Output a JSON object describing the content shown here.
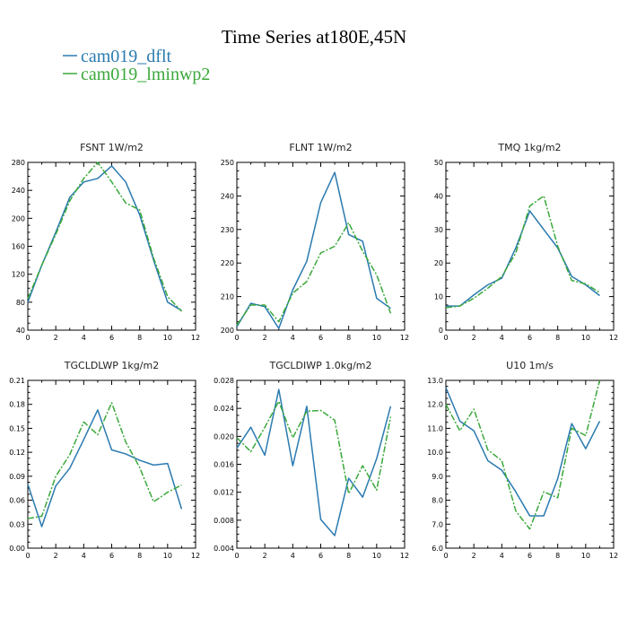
{
  "title": "Time Series at180E,45N",
  "legend": [
    {
      "label": "cam019_dflt",
      "color": "#2a7ab0",
      "dash": "solid"
    },
    {
      "label": "cam019_lminwp2",
      "color": "#3aa83a",
      "dash": "dashed"
    }
  ],
  "colors": {
    "dflt": "#2a7ab0",
    "lminwp2": "#3aa83a"
  },
  "chart_data": [
    {
      "type": "line",
      "title": "FSNT   1W/m2",
      "x": [
        0,
        1,
        2,
        3,
        4,
        5,
        6,
        7,
        8,
        9,
        10,
        11
      ],
      "xlim": [
        0,
        12
      ],
      "xticks": [
        0,
        2,
        4,
        6,
        8,
        10,
        12
      ],
      "ylim": [
        40,
        280
      ],
      "yticks": [
        "40",
        "80",
        "120",
        "160",
        "200",
        "240",
        "280"
      ],
      "series": [
        {
          "name": "cam019_dflt",
          "values": [
            80,
            133,
            180,
            230,
            252,
            257,
            275,
            252,
            205,
            140,
            80,
            68
          ]
        },
        {
          "name": "cam019_lminwp2",
          "values": [
            85,
            133,
            177,
            225,
            257,
            280,
            252,
            222,
            212,
            143,
            88,
            67
          ]
        }
      ]
    },
    {
      "type": "line",
      "title": "FLNT   1W/m2",
      "x": [
        0,
        1,
        2,
        3,
        4,
        5,
        6,
        7,
        8,
        9,
        10,
        11
      ],
      "xlim": [
        0,
        12
      ],
      "xticks": [
        0,
        2,
        4,
        6,
        8,
        10,
        12
      ],
      "ylim": [
        200,
        250
      ],
      "yticks": [
        "200",
        "210",
        "220",
        "230",
        "240",
        "250"
      ],
      "series": [
        {
          "name": "cam019_dflt",
          "values": [
            201,
            208,
            207,
            200.5,
            212,
            220.5,
            238,
            247,
            228.5,
            226.5,
            209.5,
            206.5
          ]
        },
        {
          "name": "cam019_lminwp2",
          "values": [
            201.5,
            207.5,
            207.5,
            202.5,
            211,
            214.5,
            223,
            225,
            232,
            223.5,
            216.5,
            205
          ]
        }
      ]
    },
    {
      "type": "line",
      "title": "TMQ   1kg/m2",
      "x": [
        0,
        1,
        2,
        3,
        4,
        5,
        6,
        7,
        8,
        9,
        10,
        11
      ],
      "xlim": [
        0,
        12
      ],
      "xticks": [
        0,
        2,
        4,
        6,
        8,
        10,
        12
      ],
      "ylim": [
        0,
        50
      ],
      "yticks": [
        "0",
        "10",
        "20",
        "30",
        "40",
        "50"
      ],
      "series": [
        {
          "name": "cam019_dflt",
          "values": [
            7.2,
            7.2,
            10.5,
            13.5,
            15.5,
            24.5,
            35.5,
            30,
            24.5,
            16,
            13.5,
            10.3
          ]
        },
        {
          "name": "cam019_lminwp2",
          "values": [
            6.7,
            7.2,
            9.5,
            12.5,
            16,
            23,
            37,
            40,
            25,
            14.8,
            13.8,
            11.2
          ]
        }
      ]
    },
    {
      "type": "line",
      "title": "TGCLDLWP   1kg/m2",
      "x": [
        0,
        1,
        2,
        3,
        4,
        5,
        6,
        7,
        8,
        9,
        10,
        11
      ],
      "xlim": [
        0,
        12
      ],
      "xticks": [
        0,
        2,
        4,
        6,
        8,
        10,
        12
      ],
      "ylim": [
        0,
        0.21
      ],
      "yticks": [
        "0.00",
        "0.03",
        "0.06",
        "0.09",
        "0.12",
        "0.15",
        "0.18",
        "0.21"
      ],
      "series": [
        {
          "name": "cam019_dflt",
          "values": [
            0.08,
            0.027,
            0.078,
            0.1,
            0.136,
            0.173,
            0.123,
            0.118,
            0.11,
            0.104,
            0.106,
            0.049
          ]
        },
        {
          "name": "cam019_lminwp2",
          "values": [
            0.037,
            0.04,
            0.09,
            0.117,
            0.158,
            0.142,
            0.182,
            0.133,
            0.101,
            0.058,
            0.07,
            0.079
          ]
        }
      ]
    },
    {
      "type": "line",
      "title": "TGCLDIWP   1.0kg/m2",
      "x": [
        0,
        1,
        2,
        3,
        4,
        5,
        6,
        7,
        8,
        9,
        10,
        11
      ],
      "xlim": [
        0,
        12
      ],
      "xticks": [
        0,
        2,
        4,
        6,
        8,
        10,
        12
      ],
      "ylim": [
        0.004,
        0.028
      ],
      "yticks": [
        "0.004",
        "0.008",
        "0.012",
        "0.016",
        "0.020",
        "0.024",
        "0.028"
      ],
      "series": [
        {
          "name": "cam019_dflt",
          "values": [
            0.0183,
            0.0213,
            0.0173,
            0.0267,
            0.0158,
            0.0243,
            0.0081,
            0.0058,
            0.014,
            0.0113,
            0.0168,
            0.0243
          ]
        },
        {
          "name": "cam019_lminwp2",
          "values": [
            0.0198,
            0.0178,
            0.0213,
            0.025,
            0.0198,
            0.0236,
            0.0237,
            0.0223,
            0.0118,
            0.0158,
            0.0123,
            0.0228
          ]
        }
      ]
    },
    {
      "type": "line",
      "title": "U10   1m/s",
      "x": [
        0,
        1,
        2,
        3,
        4,
        5,
        6,
        7,
        8,
        9,
        10,
        11
      ],
      "xlim": [
        0,
        12
      ],
      "xticks": [
        0,
        2,
        4,
        6,
        8,
        10,
        12
      ],
      "ylim": [
        6,
        13
      ],
      "yticks": [
        "6.0",
        "7.0",
        "8.0",
        "9.0",
        "10.0",
        "11.0",
        "12.0",
        "13.0"
      ],
      "series": [
        {
          "name": "cam019_dflt",
          "values": [
            12.7,
            11.3,
            10.9,
            9.65,
            9.25,
            8.35,
            7.35,
            7.35,
            8.9,
            11.2,
            10.15,
            11.3
          ]
        },
        {
          "name": "cam019_lminwp2",
          "values": [
            12,
            10.9,
            11.8,
            10.1,
            9.65,
            7.55,
            6.8,
            8.35,
            8.1,
            11,
            10.7,
            13
          ]
        }
      ]
    }
  ]
}
